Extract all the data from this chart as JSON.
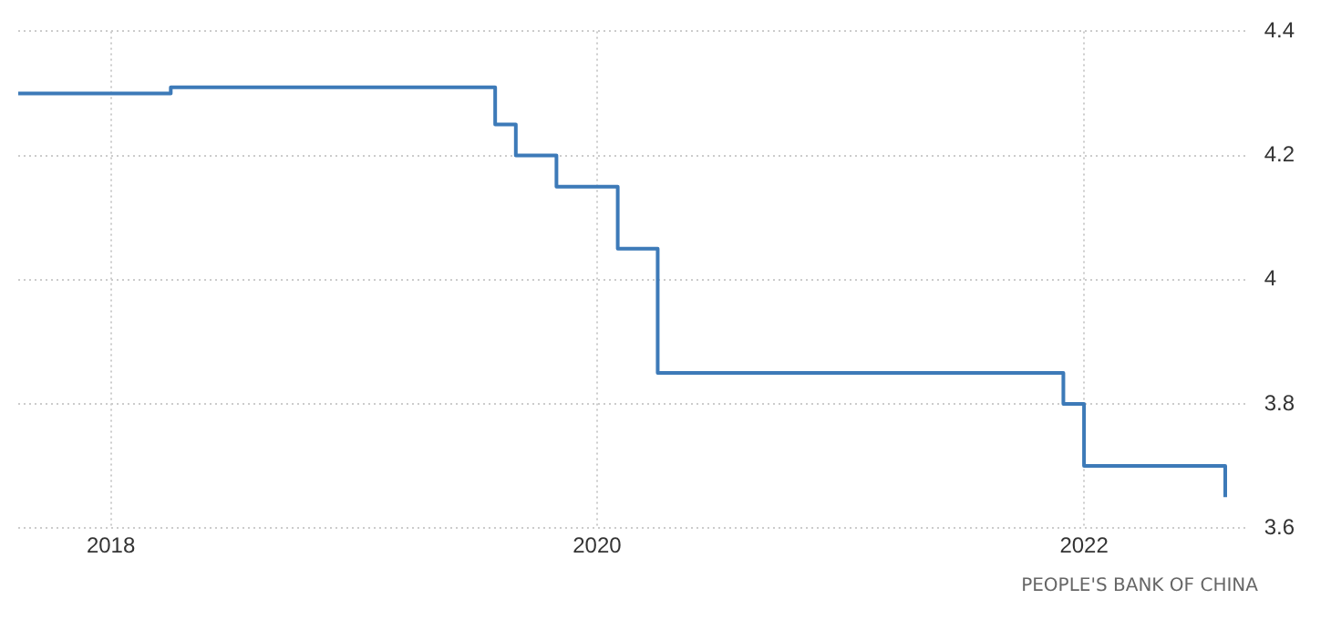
{
  "chart_data": {
    "type": "step",
    "x": [
      "2017-08-15",
      "2018-04",
      "2019-08",
      "2019-09",
      "2019-11",
      "2020-02",
      "2020-04",
      "2021-12",
      "2022-01",
      "2022-08"
    ],
    "series": [
      {
        "color": "#3d7ab8",
        "values": [
          4.3,
          4.31,
          4.25,
          4.2,
          4.15,
          4.05,
          3.85,
          3.8,
          3.7,
          3.65
        ]
      }
    ],
    "xlim": [
      "2017-08-15",
      "2022-09"
    ],
    "xticks": [
      "2018",
      "2020",
      "2022"
    ],
    "ylim": [
      3.6,
      4.4
    ],
    "yticks": [
      3.6,
      3.8,
      4,
      4.2,
      4.4
    ],
    "grid": true,
    "legend": false,
    "marker": "none",
    "line_style": "solid",
    "annotations": [
      "PEOPLE'S BANK OF CHINA"
    ]
  }
}
